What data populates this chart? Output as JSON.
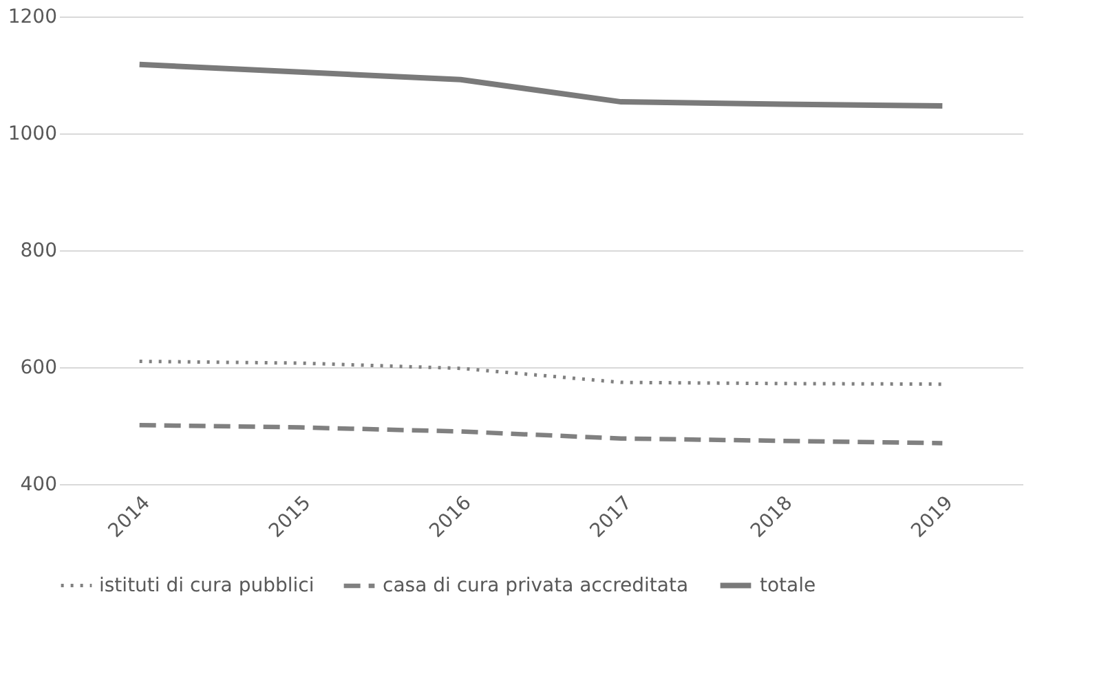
{
  "chart_data": {
    "type": "line",
    "categories": [
      "2014",
      "2015",
      "2016",
      "2017",
      "2018",
      "2019"
    ],
    "series": [
      {
        "name": "istituti di cura pubblici",
        "color": "#808080",
        "line_style": "dotted",
        "values": [
          610,
          607,
          598,
          574,
          572,
          571
        ]
      },
      {
        "name": "casa di cura privata accreditata",
        "color": "#808080",
        "line_style": "dashed",
        "values": [
          501,
          497,
          490,
          478,
          474,
          470
        ]
      },
      {
        "name": "totale",
        "color": "#7a7a7a",
        "line_style": "solid",
        "values": [
          1118,
          1105,
          1092,
          1054,
          1050,
          1047
        ]
      }
    ],
    "ylim": [
      400,
      1200
    ],
    "yticks": [
      400,
      600,
      800,
      1000,
      1200
    ],
    "grid": "y",
    "legend": "bottom"
  }
}
